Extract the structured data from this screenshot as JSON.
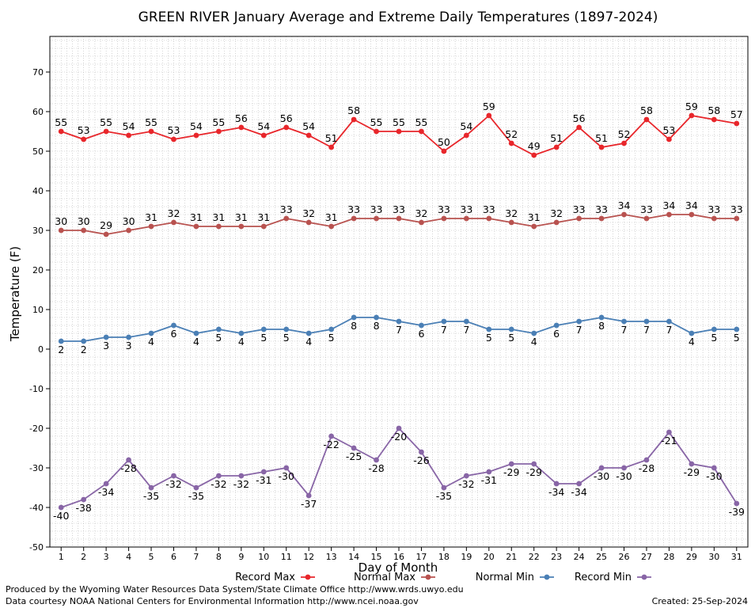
{
  "chart_data": {
    "type": "line",
    "title": "GREEN RIVER January Average and Extreme Daily Temperatures (1897-2024)",
    "xlabel": "Day of Month",
    "ylabel": "Temperature (F)",
    "ylim": [
      -50,
      79
    ],
    "xlim": [
      0.5,
      31.5
    ],
    "yticks": [
      -50,
      -40,
      -30,
      -20,
      -10,
      0,
      10,
      20,
      30,
      40,
      50,
      60,
      70
    ],
    "x": [
      1,
      2,
      3,
      4,
      5,
      6,
      7,
      8,
      9,
      10,
      11,
      12,
      13,
      14,
      15,
      16,
      17,
      18,
      19,
      20,
      21,
      22,
      23,
      24,
      25,
      26,
      27,
      28,
      29,
      30,
      31
    ],
    "grid": true,
    "legend_position": "bottom",
    "series": [
      {
        "name": "Record Max",
        "color": "#e8262b",
        "label_position": "above",
        "values": [
          55,
          53,
          55,
          54,
          55,
          53,
          54,
          55,
          56,
          54,
          56,
          54,
          51,
          58,
          55,
          55,
          55,
          50,
          54,
          59,
          52,
          49,
          51,
          56,
          51,
          52,
          58,
          53,
          59,
          58,
          57
        ]
      },
      {
        "name": "Normal Max",
        "color": "#b8524f",
        "label_position": "above",
        "values": [
          30,
          30,
          29,
          30,
          31,
          32,
          31,
          31,
          31,
          31,
          33,
          32,
          31,
          33,
          33,
          33,
          32,
          33,
          33,
          33,
          32,
          31,
          32,
          33,
          33,
          34,
          33,
          34,
          34,
          33,
          33
        ]
      },
      {
        "name": "Normal Min",
        "color": "#4a7fb5",
        "label_position": "below",
        "values": [
          2,
          2,
          3,
          3,
          4,
          6,
          4,
          5,
          4,
          5,
          5,
          4,
          5,
          8,
          8,
          7,
          6,
          7,
          7,
          5,
          5,
          4,
          6,
          7,
          8,
          7,
          7,
          7,
          4,
          5,
          5
        ]
      },
      {
        "name": "Record Min",
        "color": "#8865a6",
        "label_position": "below",
        "values": [
          -40,
          -38,
          -34,
          -28,
          -35,
          -32,
          -35,
          -32,
          -32,
          -31,
          -30,
          -37,
          -22,
          -25,
          -28,
          -20,
          -26,
          -35,
          -32,
          -31,
          -29,
          -29,
          -34,
          -34,
          -30,
          -30,
          -28,
          -21,
          -29,
          -30,
          -39
        ]
      }
    ]
  },
  "footer": {
    "line1": "Produced by the Wyoming Water Resources Data System/State Climate Office http://www.wrds.uwyo.edu",
    "line2": "Data courtesy NOAA National Centers for Environmental Information http://www.ncei.noaa.gov",
    "created": "Created:  25-Sep-2024"
  }
}
